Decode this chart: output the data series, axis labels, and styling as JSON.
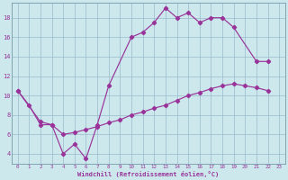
{
  "xlabel": "Windchill (Refroidissement éolien,°C)",
  "bg_color": "#cce8ec",
  "line_color": "#993399",
  "grid_color": "#99bbcc",
  "curve1_x": [
    0,
    1,
    2,
    3,
    4,
    5,
    6,
    7,
    8,
    10,
    11,
    12,
    13,
    14,
    15,
    16,
    17,
    18,
    19,
    21,
    22
  ],
  "curve1_y": [
    10.5,
    9.0,
    7.0,
    7.0,
    4.0,
    5.0,
    3.5,
    7.0,
    11.0,
    16.0,
    16.5,
    17.5,
    19.0,
    18.0,
    18.5,
    17.5,
    18.0,
    18.0,
    17.0,
    13.5,
    13.5
  ],
  "curve2_x": [
    0,
    2,
    3,
    4,
    5,
    6,
    7,
    8,
    9,
    10,
    11,
    12,
    13,
    14,
    15,
    16,
    17,
    18,
    19,
    20,
    21,
    22
  ],
  "curve2_y": [
    10.5,
    7.3,
    7.0,
    6.0,
    6.2,
    6.5,
    6.8,
    7.2,
    7.5,
    8.0,
    8.3,
    8.7,
    9.0,
    9.5,
    10.0,
    10.3,
    10.7,
    11.0,
    11.2,
    11.0,
    10.8,
    10.5
  ],
  "xlim": [
    -0.5,
    23.5
  ],
  "ylim": [
    3.0,
    19.5
  ],
  "xticks": [
    0,
    1,
    2,
    3,
    4,
    5,
    6,
    7,
    8,
    9,
    10,
    11,
    12,
    13,
    14,
    15,
    16,
    17,
    18,
    19,
    20,
    21,
    22,
    23
  ],
  "yticks": [
    4,
    6,
    8,
    10,
    12,
    14,
    16,
    18
  ],
  "xtick_fontsize": 4.2,
  "ytick_fontsize": 5.0,
  "xlabel_fontsize": 5.0,
  "marker_size": 2.2,
  "linewidth": 0.85
}
